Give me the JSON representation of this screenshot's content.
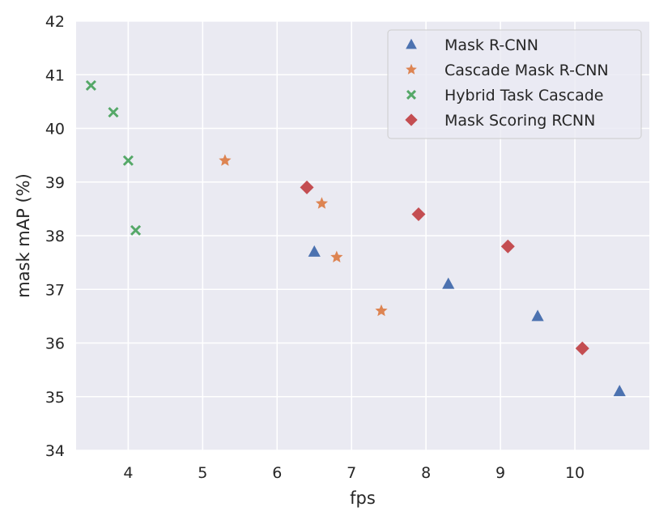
{
  "chart_data": {
    "type": "scatter",
    "xlabel": "fps",
    "ylabel": "mask mAP (%)",
    "xlim": [
      3.3,
      11.0
    ],
    "ylim": [
      34,
      42
    ],
    "xticks": [
      4,
      5,
      6,
      7,
      8,
      9,
      10
    ],
    "yticks": [
      34,
      35,
      36,
      37,
      38,
      39,
      40,
      41,
      42
    ],
    "grid": true,
    "legend_position": "top-right",
    "series": [
      {
        "name": "Mask R-CNN",
        "marker": "triangle",
        "color": "#4C72B0",
        "points": [
          [
            6.5,
            37.7
          ],
          [
            8.3,
            37.1
          ],
          [
            9.5,
            36.5
          ],
          [
            10.6,
            35.1
          ]
        ]
      },
      {
        "name": "Cascade Mask R-CNN",
        "marker": "star",
        "color": "#DD8452",
        "points": [
          [
            5.3,
            39.4
          ],
          [
            6.6,
            38.6
          ],
          [
            6.8,
            37.6
          ],
          [
            7.4,
            36.6
          ]
        ]
      },
      {
        "name": "Hybrid Task Cascade",
        "marker": "x",
        "color": "#55A868",
        "points": [
          [
            3.5,
            40.8
          ],
          [
            3.8,
            40.3
          ],
          [
            4.0,
            39.4
          ],
          [
            4.1,
            38.1
          ]
        ]
      },
      {
        "name": "Mask Scoring RCNN",
        "marker": "diamond",
        "color": "#C44E52",
        "points": [
          [
            6.4,
            38.9
          ],
          [
            7.9,
            38.4
          ],
          [
            9.1,
            37.8
          ],
          [
            10.1,
            35.9
          ]
        ]
      }
    ]
  }
}
